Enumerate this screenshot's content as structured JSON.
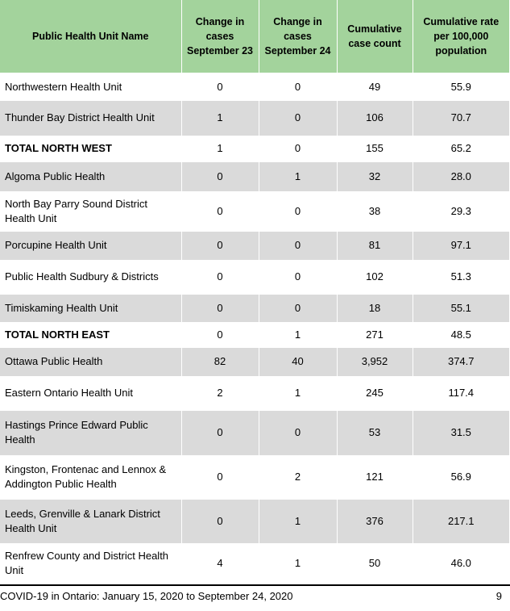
{
  "table": {
    "headers": [
      "Public Health Unit Name",
      "Change in cases September 23",
      "Change in cases September 24",
      "Cumulative case count",
      "Cumulative rate per 100,000 population"
    ],
    "rows": [
      {
        "name": "Northwestern Health Unit",
        "sep23": "0",
        "sep24": "0",
        "cumulative": "49",
        "rate": "55.9"
      },
      {
        "name": "Thunder Bay District Health Unit",
        "sep23": "1",
        "sep24": "0",
        "cumulative": "106",
        "rate": "70.7"
      },
      {
        "name": "TOTAL NORTH WEST",
        "sep23": "1",
        "sep24": "0",
        "cumulative": "155",
        "rate": "65.2"
      },
      {
        "name": "Algoma Public Health",
        "sep23": "0",
        "sep24": "1",
        "cumulative": "32",
        "rate": "28.0"
      },
      {
        "name": "North Bay Parry Sound District Health Unit",
        "sep23": "0",
        "sep24": "0",
        "cumulative": "38",
        "rate": "29.3"
      },
      {
        "name": "Porcupine Health Unit",
        "sep23": "0",
        "sep24": "0",
        "cumulative": "81",
        "rate": "97.1"
      },
      {
        "name": "Public Health Sudbury & Districts",
        "sep23": "0",
        "sep24": "0",
        "cumulative": "102",
        "rate": "51.3"
      },
      {
        "name": "Timiskaming Health Unit",
        "sep23": "0",
        "sep24": "0",
        "cumulative": "18",
        "rate": "55.1"
      },
      {
        "name": "TOTAL NORTH EAST",
        "sep23": "0",
        "sep24": "1",
        "cumulative": "271",
        "rate": "48.5"
      },
      {
        "name": "Ottawa Public Health",
        "sep23": "82",
        "sep24": "40",
        "cumulative": "3,952",
        "rate": "374.7"
      },
      {
        "name": "Eastern Ontario Health Unit",
        "sep23": "2",
        "sep24": "1",
        "cumulative": "245",
        "rate": "117.4"
      },
      {
        "name": "Hastings Prince Edward Public Health",
        "sep23": "0",
        "sep24": "0",
        "cumulative": "53",
        "rate": "31.5"
      },
      {
        "name": "Kingston, Frontenac and Lennox & Addington Public Health",
        "sep23": "0",
        "sep24": "2",
        "cumulative": "121",
        "rate": "56.9"
      },
      {
        "name": "Leeds, Grenville & Lanark District Health Unit",
        "sep23": "0",
        "sep24": "1",
        "cumulative": "376",
        "rate": "217.1"
      },
      {
        "name": "Renfrew County and District Health Unit",
        "sep23": "4",
        "sep24": "1",
        "cumulative": "50",
        "rate": "46.0"
      }
    ]
  },
  "footer": {
    "title": "COVID-19 in Ontario: January 15, 2020 to September 24, 2020",
    "page_number": "9"
  },
  "colors": {
    "header_bg": "#a3d39c",
    "shaded_row_bg": "#dadada"
  }
}
